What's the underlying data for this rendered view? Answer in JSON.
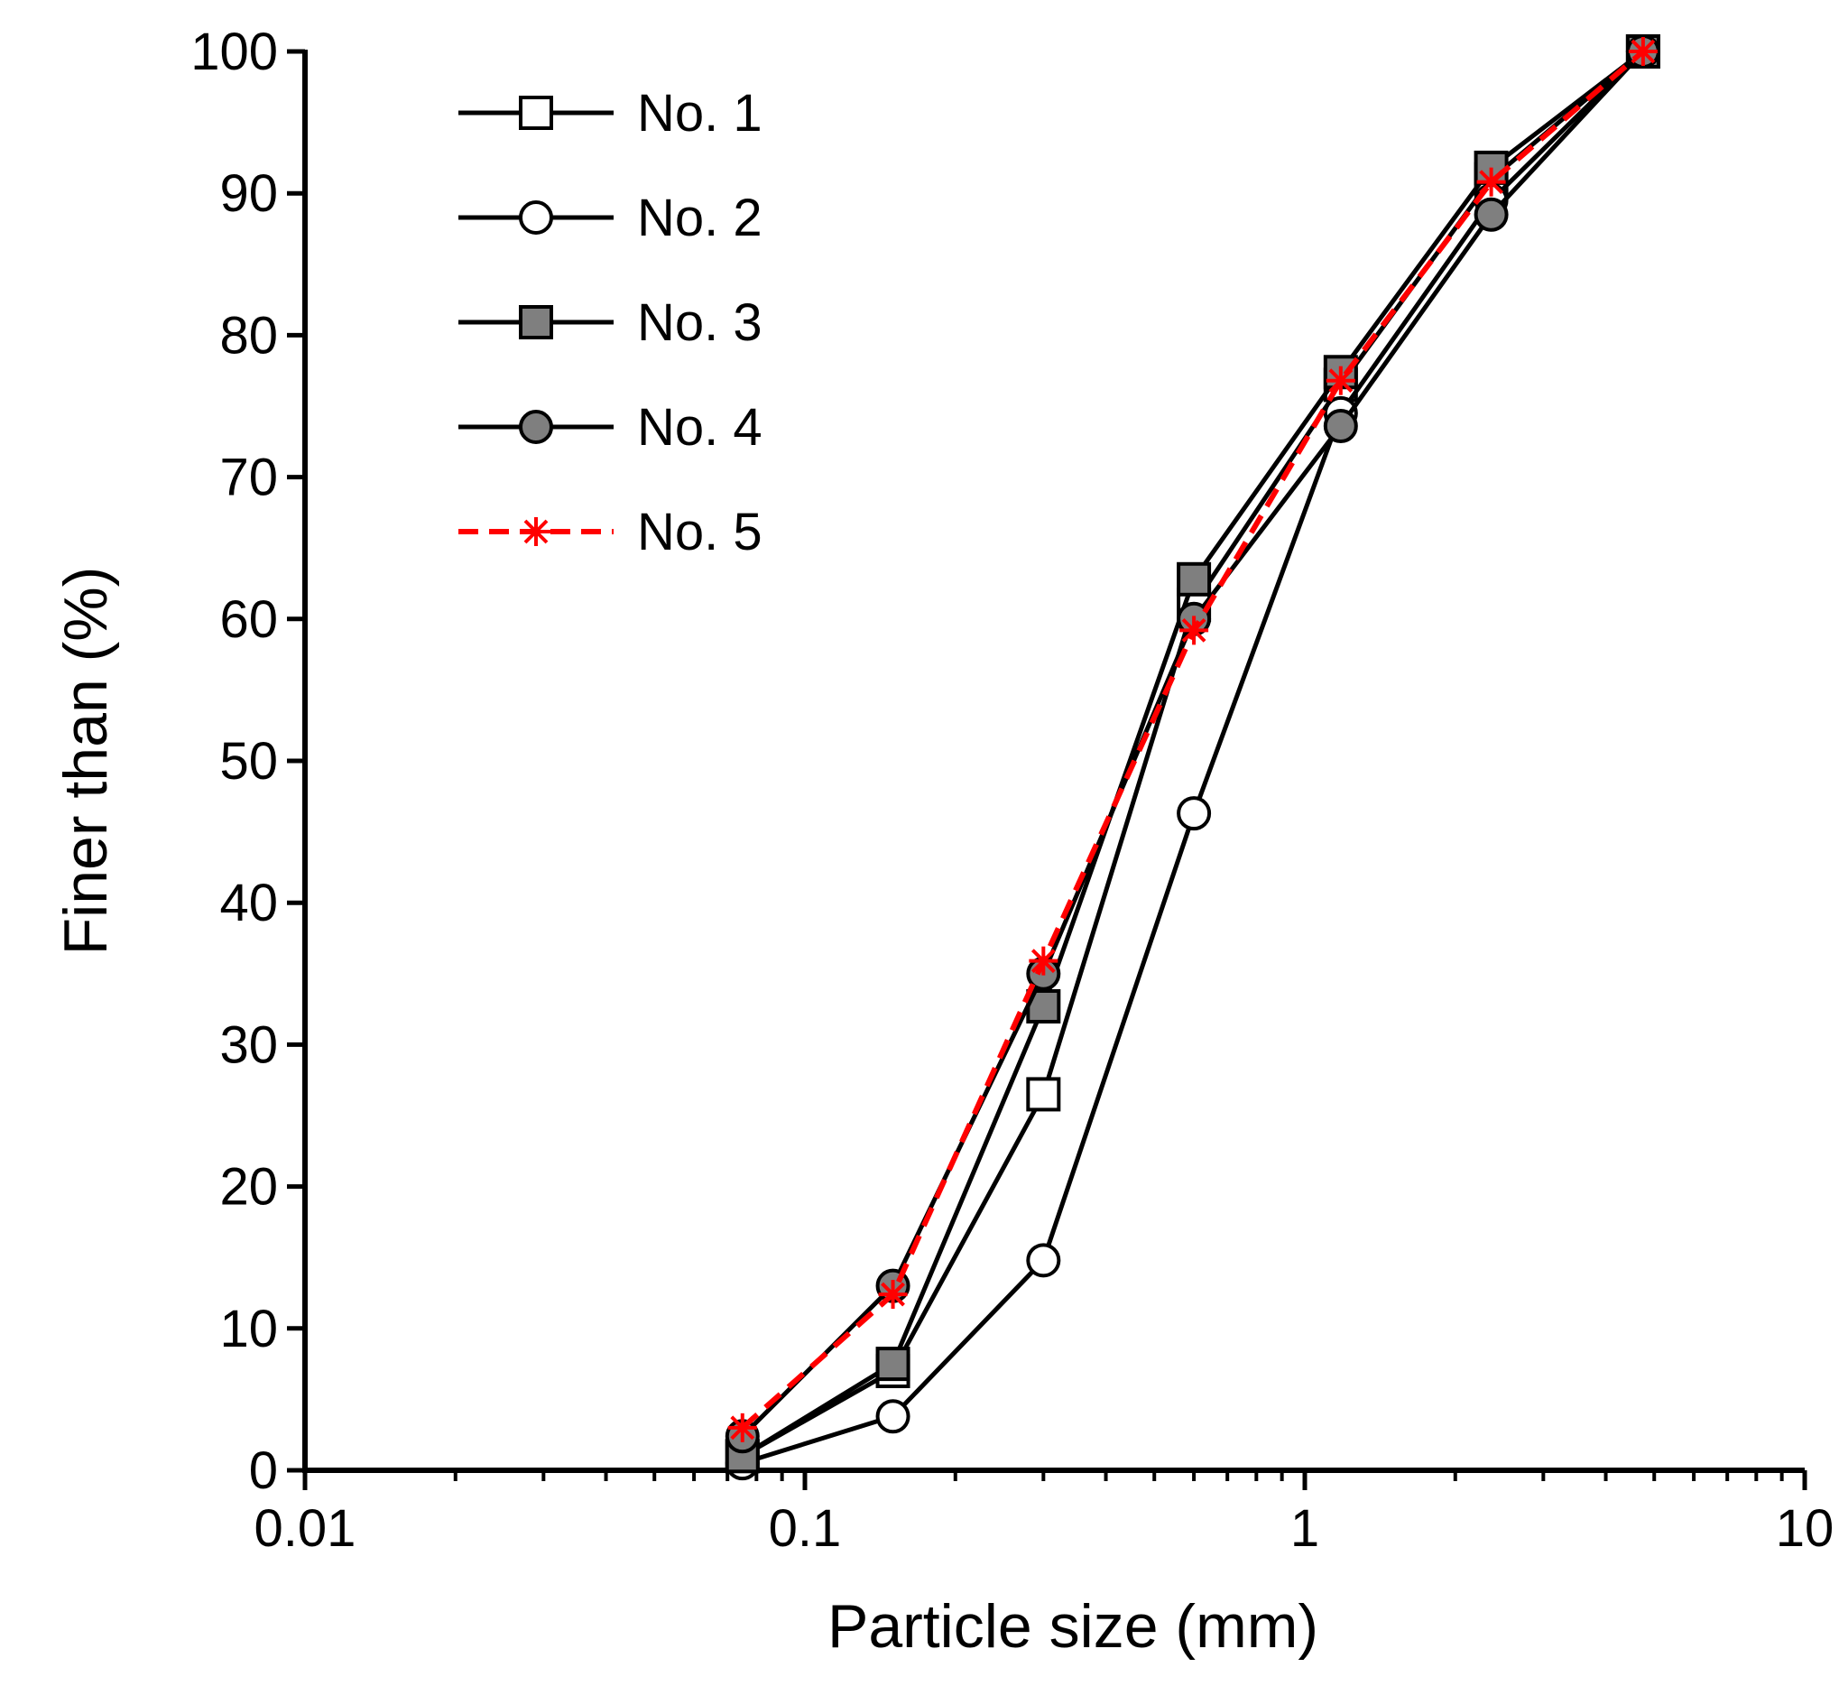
{
  "chart_data": {
    "type": "line",
    "xscale": "log",
    "xlabel": "Particle size (mm)",
    "ylabel": "Finer than (%)",
    "xlim": [
      0.01,
      10
    ],
    "ylim": [
      0,
      100
    ],
    "x_tick_labels": [
      "0.01",
      "0.1",
      "1",
      "10"
    ],
    "x_tick_values": [
      0.01,
      0.1,
      1,
      10
    ],
    "y_tick_labels": [
      "0",
      "10",
      "20",
      "30",
      "40",
      "50",
      "60",
      "70",
      "80",
      "90",
      "100"
    ],
    "y_tick_values": [
      0,
      10,
      20,
      30,
      40,
      50,
      60,
      70,
      80,
      90,
      100
    ],
    "x": [
      0.075,
      0.15,
      0.3,
      0.6,
      1.18,
      2.36,
      4.75
    ],
    "legend_position": "top-left",
    "grid": false,
    "series": [
      {
        "name": "No. 1",
        "values": [
          1.0,
          7.0,
          26.5,
          61.0,
          76.5,
          91.0,
          100
        ],
        "marker": "square",
        "fill": "#ffffff",
        "line_color": "#000000",
        "dashed": false
      },
      {
        "name": "No. 2",
        "values": [
          0.5,
          3.8,
          14.8,
          46.3,
          74.5,
          89.5,
          100
        ],
        "marker": "circle",
        "fill": "#ffffff",
        "line_color": "#000000",
        "dashed": false
      },
      {
        "name": "No. 3",
        "values": [
          1.0,
          7.5,
          32.7,
          62.8,
          77.4,
          91.8,
          100
        ],
        "marker": "square",
        "fill": "#7f7f7f",
        "line_color": "#000000",
        "dashed": false
      },
      {
        "name": "No. 4",
        "values": [
          2.4,
          13.0,
          35.0,
          60.0,
          73.6,
          88.5,
          100
        ],
        "marker": "circle",
        "fill": "#7f7f7f",
        "line_color": "#000000",
        "dashed": false
      },
      {
        "name": "No. 5",
        "values": [
          3.0,
          12.4,
          35.9,
          59.2,
          76.8,
          90.8,
          100
        ],
        "marker": "asterisk",
        "fill": "none",
        "line_color": "#ff0000",
        "dashed": true
      }
    ]
  }
}
